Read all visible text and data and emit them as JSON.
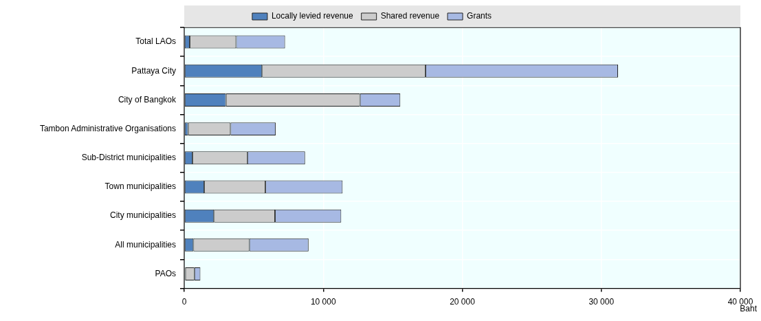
{
  "chart_data": {
    "type": "bar",
    "orientation": "horizontal",
    "stacked": true,
    "xlabel": "Baht",
    "legend": "top",
    "grid": true,
    "categories": [
      "Total LAOs",
      "Pattaya City",
      "City of Bangkok",
      "Tambon Administrative Organisations",
      "Sub-District municipalities",
      "Town municipalities",
      "City municipalities",
      "All municipalities",
      "PAOs"
    ],
    "series": [
      {
        "name": "Locally levied revenue",
        "color": "#4f81bd",
        "values": [
          400,
          5600,
          3000,
          280,
          600,
          1440,
          2140,
          660,
          80
        ]
      },
      {
        "name": "Shared revenue",
        "color": "#cccccc",
        "values": [
          3330,
          11750,
          9640,
          3050,
          3940,
          4400,
          4390,
          4020,
          650
        ]
      },
      {
        "name": "Grants",
        "color": "#a7b9e3",
        "values": [
          3520,
          13850,
          2900,
          3250,
          4150,
          5550,
          4760,
          4260,
          430
        ]
      }
    ],
    "xlim": [
      0,
      40000
    ],
    "xticks": [
      {
        "value": 0,
        "label": "0"
      },
      {
        "value": 10000,
        "label": "10 000"
      },
      {
        "value": 20000,
        "label": "20 000"
      },
      {
        "value": 30000,
        "label": "30 000"
      },
      {
        "value": 40000,
        "label": "40 000"
      }
    ]
  }
}
